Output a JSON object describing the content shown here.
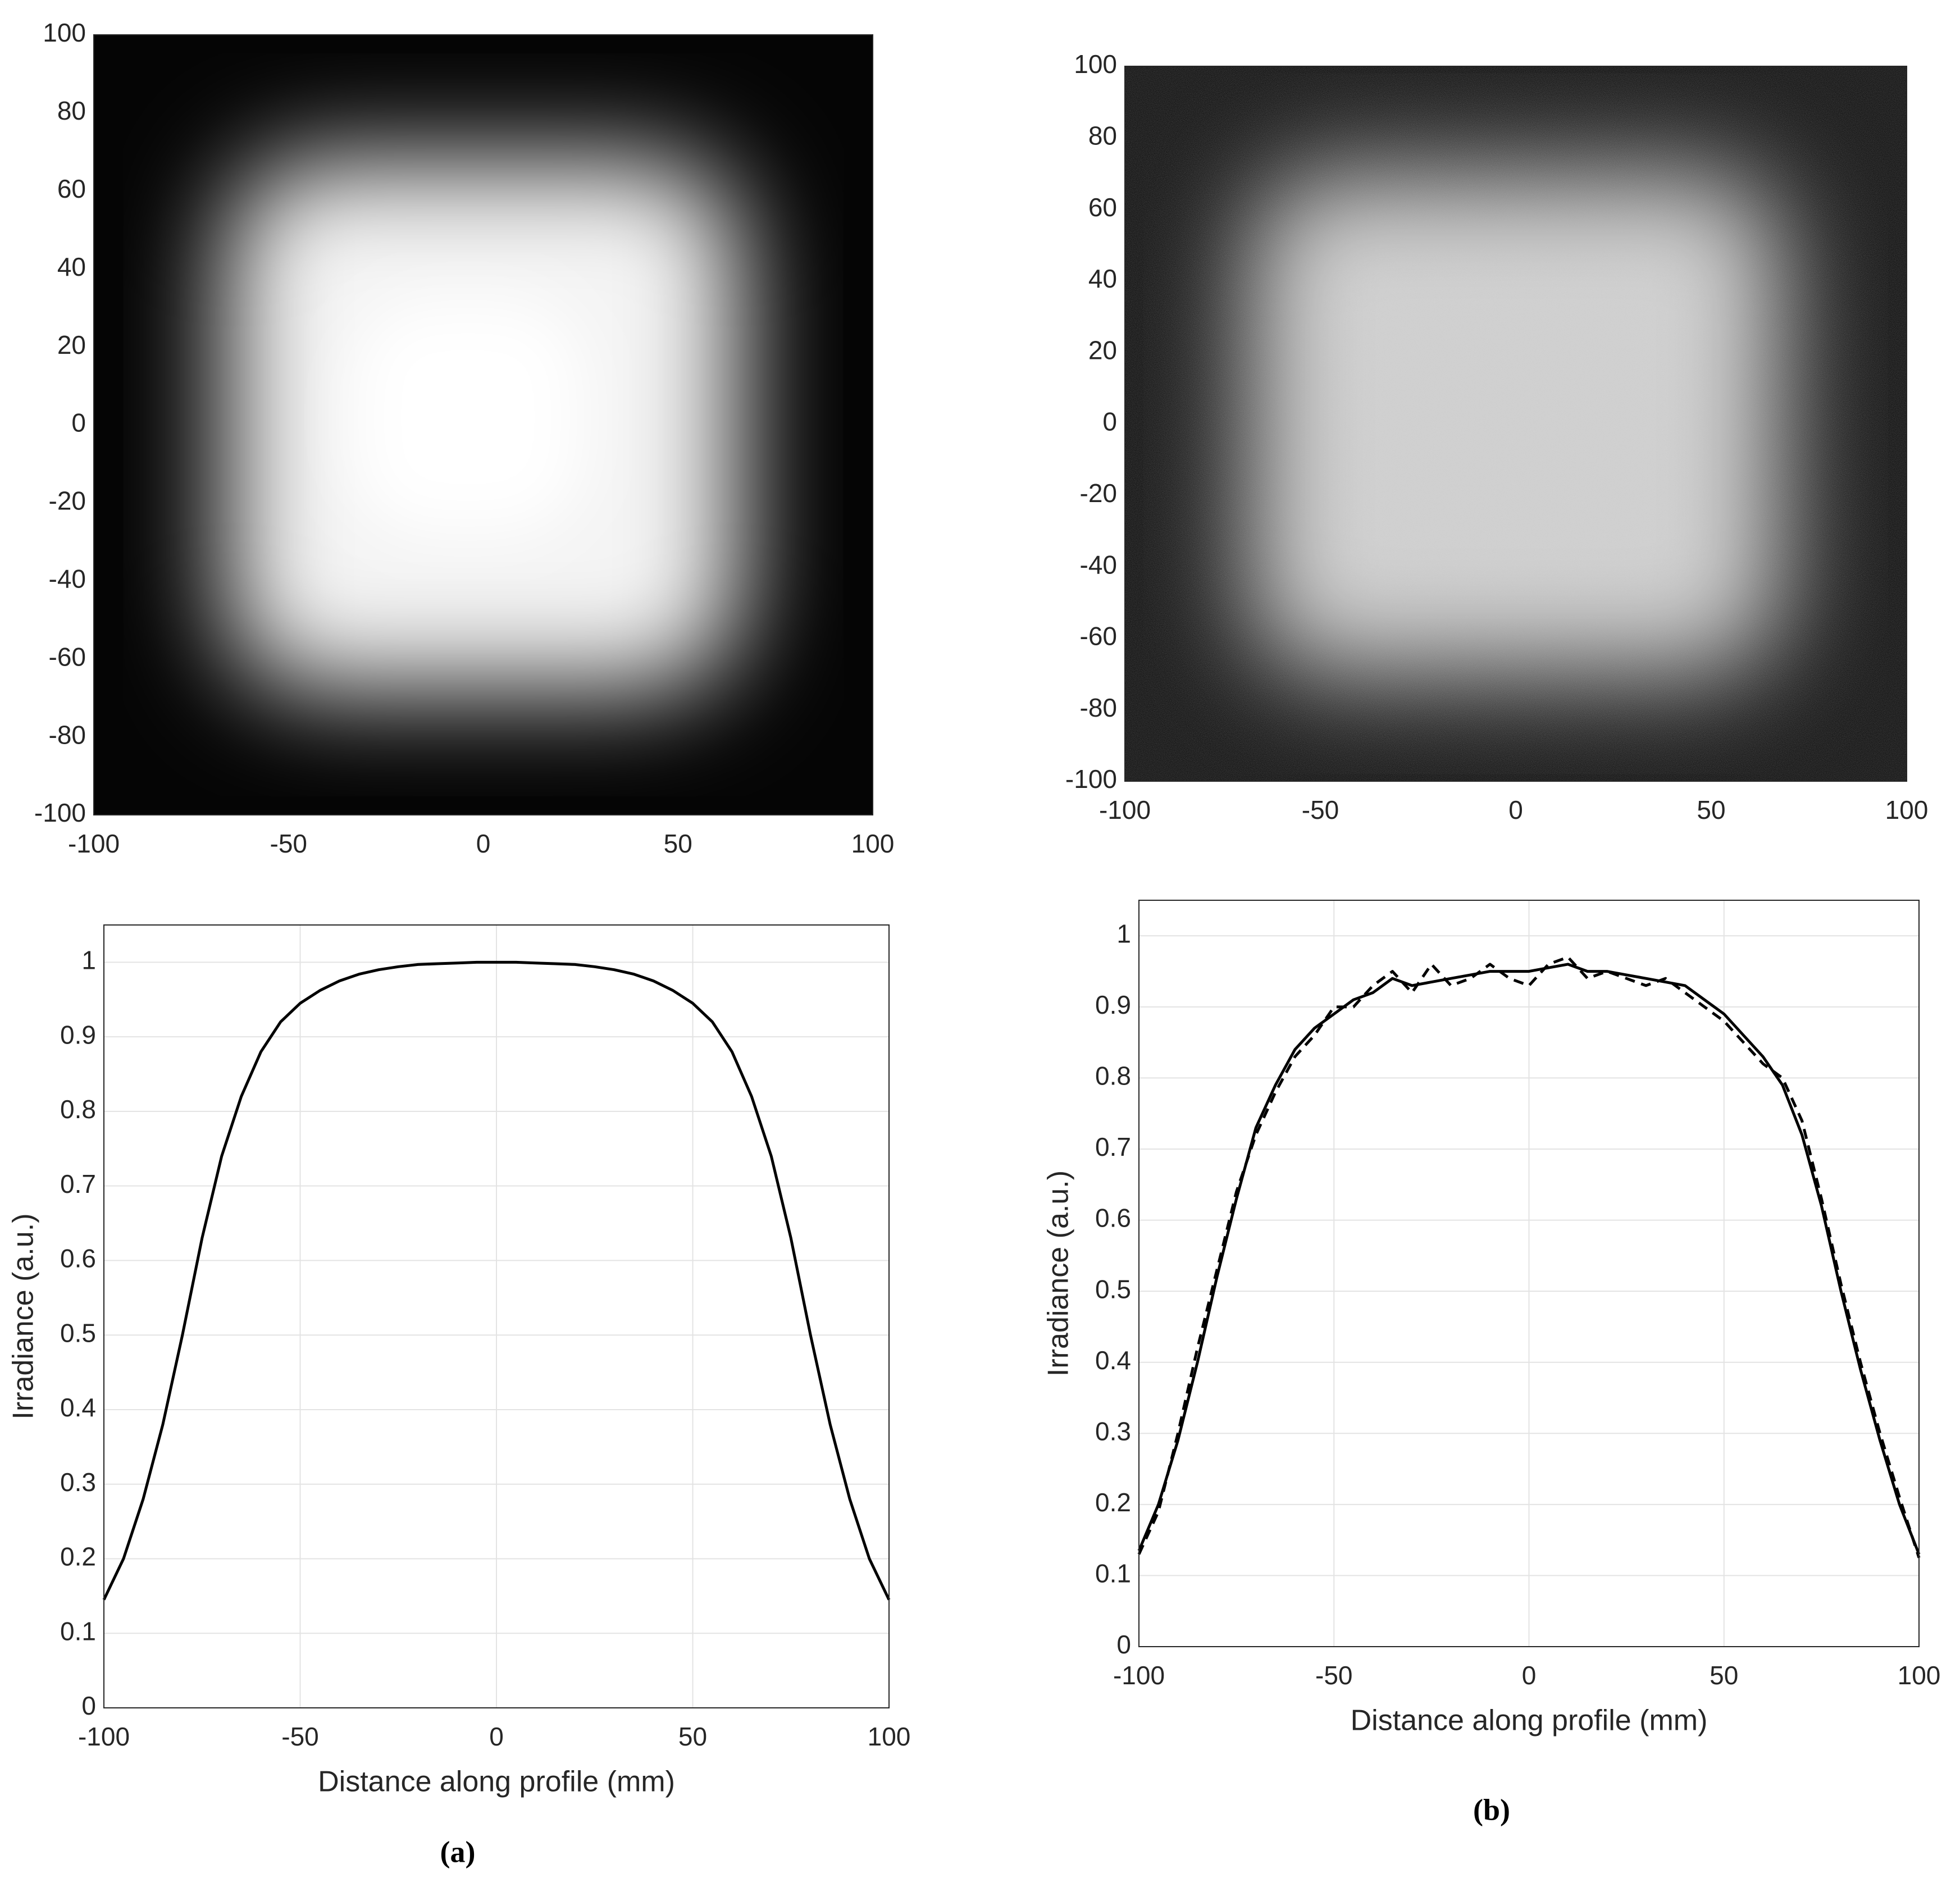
{
  "chart_data": [
    {
      "type": "image",
      "xlim": [
        -100,
        100
      ],
      "ylim": [
        -100,
        100
      ],
      "xticks": [
        -100,
        -50,
        0,
        50,
        100
      ],
      "yticks": [
        -100,
        -80,
        -60,
        -40,
        -20,
        0,
        20,
        40,
        60,
        80,
        100
      ],
      "noise": false
    },
    {
      "type": "image",
      "xlim": [
        -100,
        100
      ],
      "ylim": [
        -100,
        100
      ],
      "xticks": [
        -100,
        -50,
        0,
        50,
        100
      ],
      "yticks": [
        -100,
        -80,
        -60,
        -40,
        -20,
        0,
        20,
        40,
        60,
        80,
        100
      ],
      "noise": true
    },
    {
      "type": "line",
      "xlabel": "Distance along profile (mm)",
      "ylabel": "Irradiance (a.u.)",
      "caption": "(a)",
      "grid": true,
      "xlim": [
        -100,
        100
      ],
      "ylim": [
        0,
        1.05
      ],
      "xticks": [
        -100,
        -50,
        0,
        50,
        100
      ],
      "yticks": [
        0,
        0.1,
        0.2,
        0.3,
        0.4,
        0.5,
        0.6,
        0.7,
        0.8,
        0.9,
        1
      ],
      "x": [
        -100,
        -95,
        -90,
        -85,
        -80,
        -75,
        -70,
        -65,
        -60,
        -55,
        -50,
        -45,
        -40,
        -35,
        -30,
        -25,
        -20,
        -15,
        -10,
        -5,
        0,
        5,
        10,
        15,
        20,
        25,
        30,
        35,
        40,
        45,
        50,
        55,
        60,
        65,
        70,
        75,
        80,
        85,
        90,
        95,
        100
      ],
      "series": [
        {
          "color": "#000000",
          "linestyle": "solid",
          "values": [
            0.145,
            0.2,
            0.28,
            0.38,
            0.5,
            0.63,
            0.74,
            0.82,
            0.88,
            0.92,
            0.945,
            0.962,
            0.975,
            0.984,
            0.99,
            0.994,
            0.997,
            0.998,
            0.999,
            1.0,
            1.0,
            1.0,
            0.999,
            0.998,
            0.997,
            0.994,
            0.99,
            0.984,
            0.975,
            0.962,
            0.945,
            0.92,
            0.88,
            0.82,
            0.74,
            0.63,
            0.5,
            0.38,
            0.28,
            0.2,
            0.145
          ]
        }
      ]
    },
    {
      "type": "line",
      "xlabel": "Distance along profile (mm)",
      "ylabel": "Irradiance (a.u.)",
      "caption": "(b)",
      "grid": true,
      "xlim": [
        -100,
        100
      ],
      "ylim": [
        0,
        1.05
      ],
      "xticks": [
        -100,
        -50,
        0,
        50,
        100
      ],
      "yticks": [
        0,
        0.1,
        0.2,
        0.3,
        0.4,
        0.5,
        0.6,
        0.7,
        0.8,
        0.9,
        1
      ],
      "x": [
        -100,
        -95,
        -90,
        -85,
        -80,
        -75,
        -70,
        -65,
        -60,
        -55,
        -50,
        -45,
        -40,
        -35,
        -30,
        -25,
        -20,
        -15,
        -10,
        -5,
        0,
        5,
        10,
        15,
        20,
        25,
        30,
        35,
        40,
        45,
        50,
        55,
        60,
        65,
        70,
        75,
        80,
        85,
        90,
        95,
        100
      ],
      "series": [
        {
          "color": "#000000",
          "linestyle": "solid",
          "values": [
            0.135,
            0.2,
            0.29,
            0.4,
            0.52,
            0.63,
            0.73,
            0.79,
            0.84,
            0.87,
            0.89,
            0.91,
            0.92,
            0.94,
            0.93,
            0.935,
            0.94,
            0.945,
            0.95,
            0.95,
            0.95,
            0.955,
            0.96,
            0.95,
            0.95,
            0.945,
            0.94,
            0.935,
            0.93,
            0.91,
            0.89,
            0.86,
            0.83,
            0.79,
            0.72,
            0.62,
            0.5,
            0.39,
            0.29,
            0.2,
            0.13
          ]
        },
        {
          "color": "#000000",
          "linestyle": "dashed",
          "values": [
            0.13,
            0.19,
            0.3,
            0.42,
            0.53,
            0.64,
            0.72,
            0.78,
            0.83,
            0.86,
            0.9,
            0.9,
            0.93,
            0.95,
            0.92,
            0.96,
            0.93,
            0.94,
            0.96,
            0.94,
            0.93,
            0.96,
            0.97,
            0.94,
            0.95,
            0.94,
            0.93,
            0.94,
            0.92,
            0.9,
            0.88,
            0.85,
            0.82,
            0.8,
            0.74,
            0.63,
            0.51,
            0.4,
            0.3,
            0.21,
            0.125
          ]
        }
      ]
    }
  ]
}
